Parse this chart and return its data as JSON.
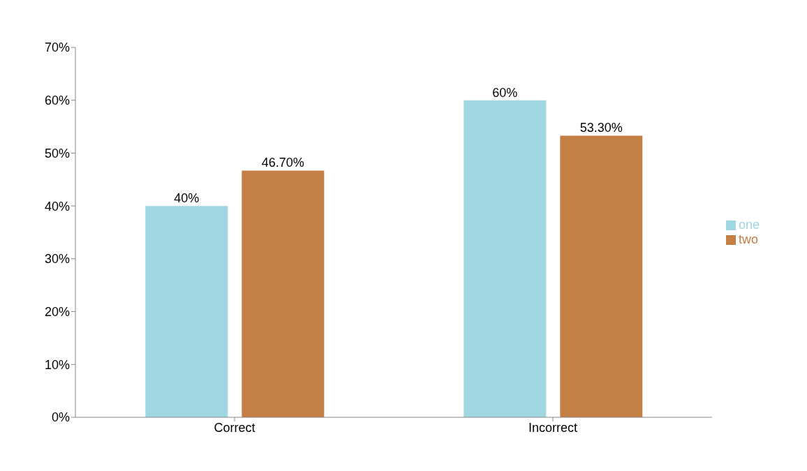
{
  "chart_data": {
    "type": "bar",
    "categories": [
      "Correct",
      "Incorrect"
    ],
    "series": [
      {
        "name": "one",
        "color": "#9fd6e2",
        "values": [
          40,
          60
        ],
        "value_labels": [
          "40%",
          "60%"
        ]
      },
      {
        "name": "two",
        "color": "#c47f45",
        "values": [
          46.7,
          53.3
        ],
        "value_labels": [
          "46.70%",
          "53.30%"
        ]
      }
    ],
    "ylim": [
      0,
      70
    ],
    "yticks": [
      {
        "value": 0,
        "label": "0%"
      },
      {
        "value": 10,
        "label": "10%"
      },
      {
        "value": 20,
        "label": "20%"
      },
      {
        "value": 30,
        "label": "30%"
      },
      {
        "value": 40,
        "label": "40%"
      },
      {
        "value": 50,
        "label": "50%"
      },
      {
        "value": 60,
        "label": "60%"
      },
      {
        "value": 70,
        "label": "70%"
      }
    ],
    "legend": "right"
  }
}
